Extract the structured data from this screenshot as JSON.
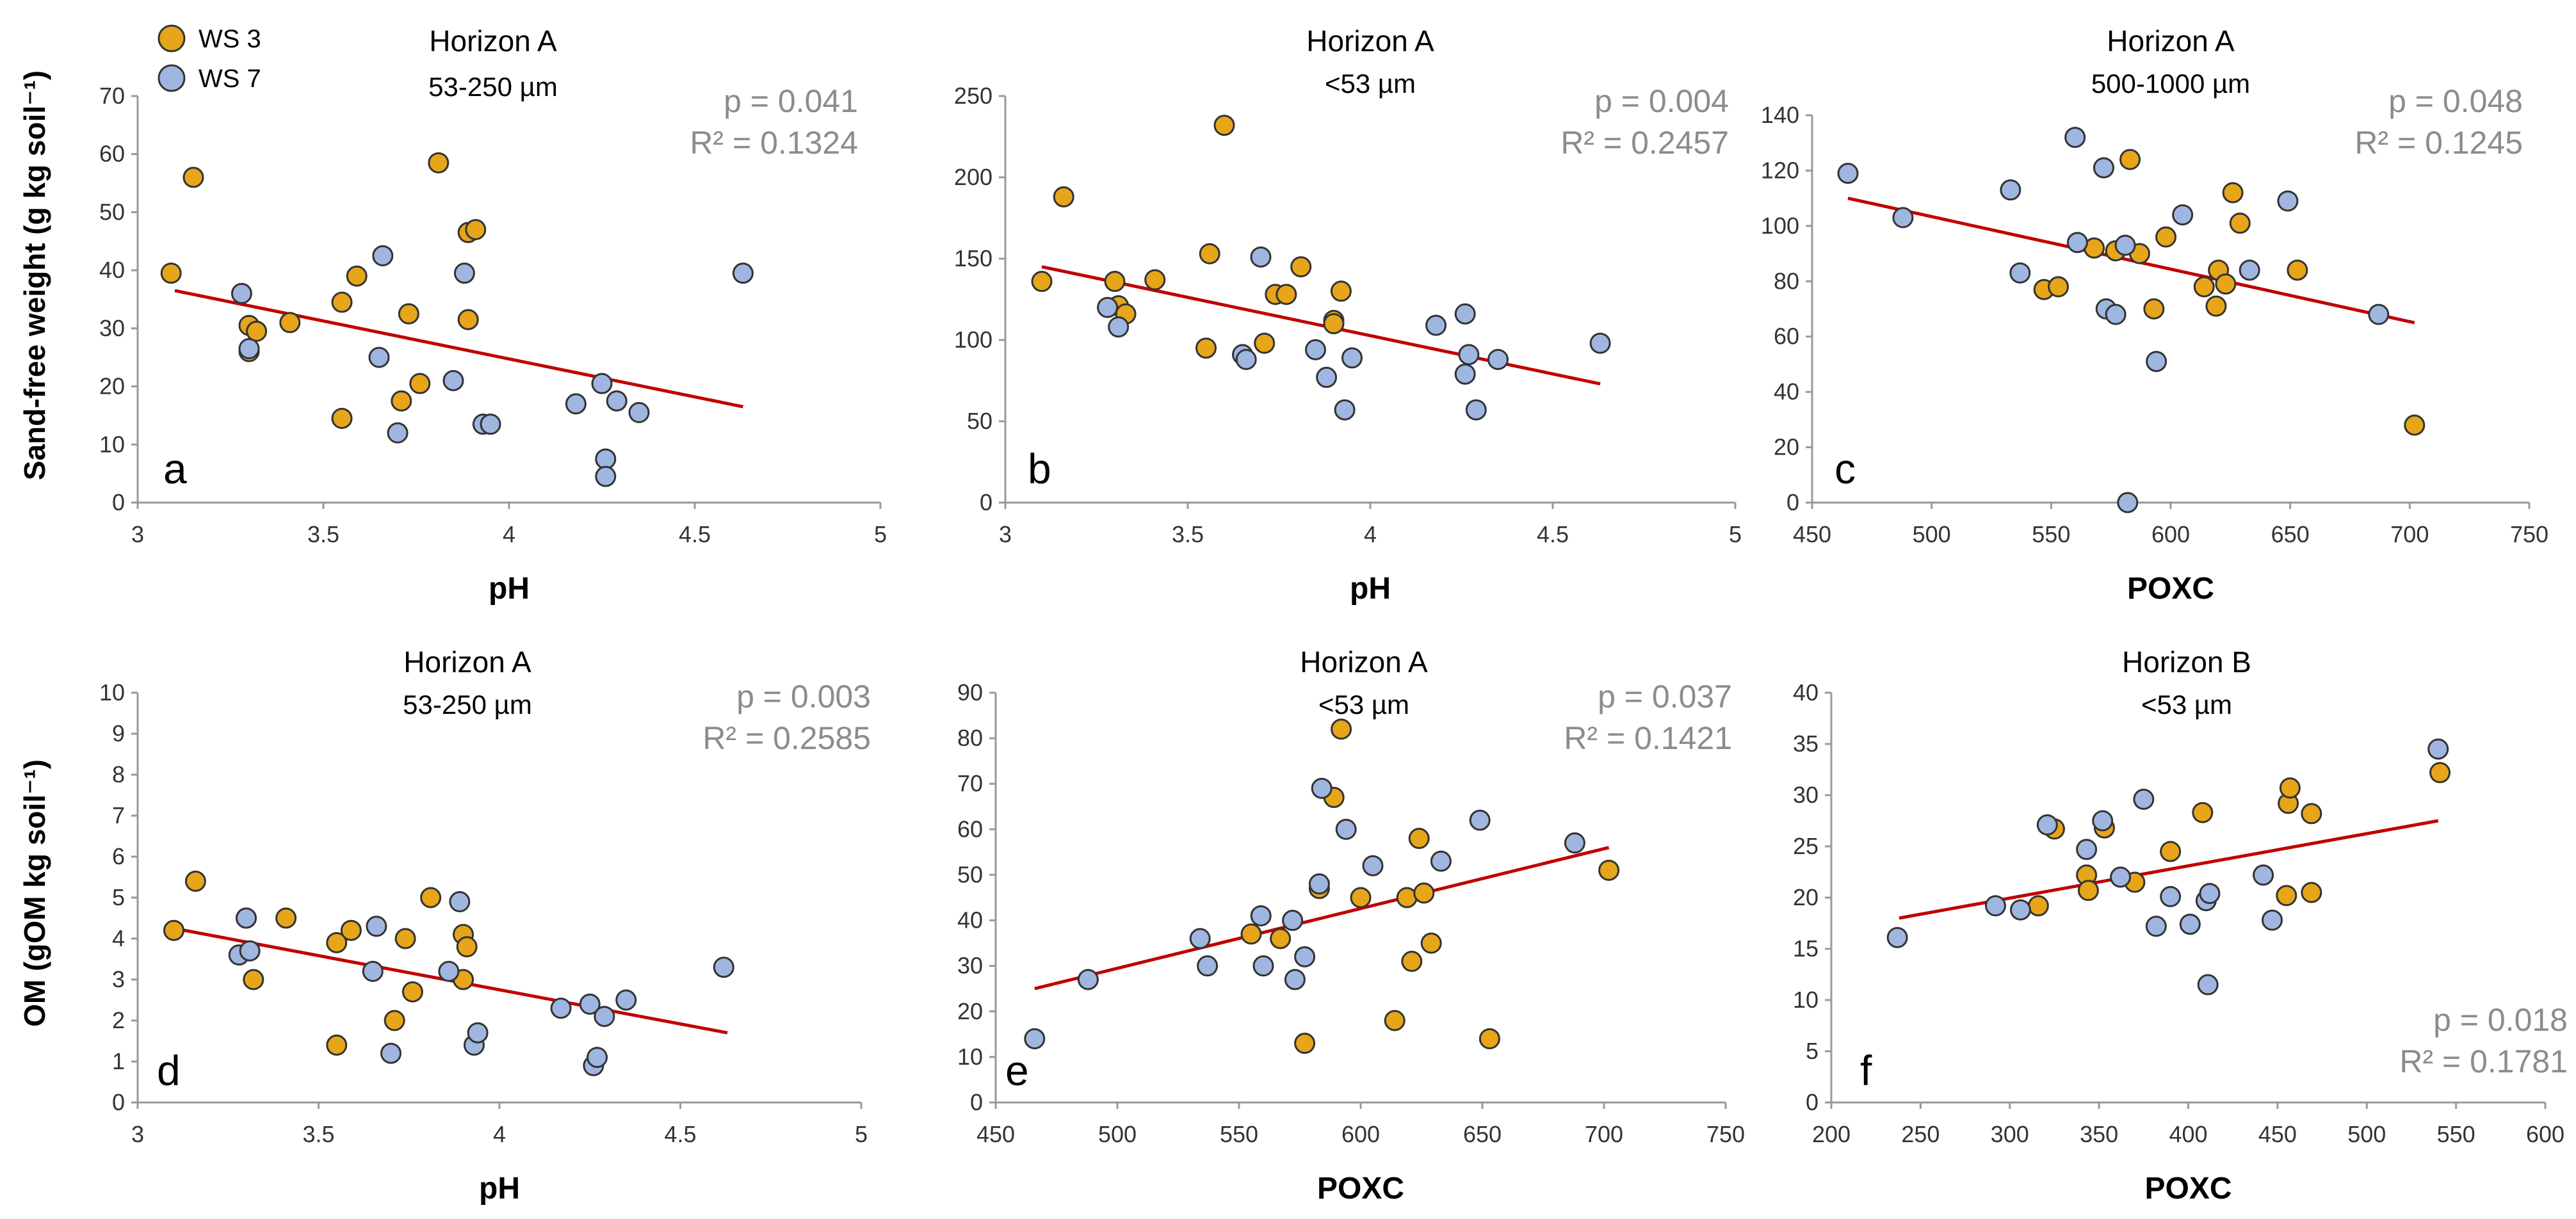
{
  "colors": {
    "ws3": "#E7A519",
    "ws7": "#9FB6E0",
    "trend": "#C00000",
    "axis": "#999999",
    "stat": "#8c8c8c"
  },
  "legend": {
    "ws3": "WS 3",
    "ws7": "WS 7"
  },
  "ylabels": {
    "top": "Sand-free weight (g kg soil⁻¹)",
    "bottom": "OM (gOM kg soil⁻¹)"
  },
  "chart_data": [
    {
      "id": "a",
      "letter": "a",
      "type": "scatter",
      "title": "Horizon A",
      "subtitle": "53-250 µm",
      "xlabel": "pH",
      "xlim": [
        3,
        5
      ],
      "xticks": [
        "3",
        "3.5",
        "4",
        "4.5",
        "5"
      ],
      "ylim": [
        0,
        70
      ],
      "yticks": [
        "0",
        "10",
        "20",
        "30",
        "40",
        "50",
        "60",
        "70"
      ],
      "p": "p = 0.041",
      "r2": "R² = 0.1324",
      "trend": [
        [
          3.1,
          36.5
        ],
        [
          4.63,
          16.5
        ]
      ],
      "series": [
        {
          "name": "WS 3",
          "points": [
            [
              3.09,
              39.5
            ],
            [
              3.15,
              56
            ],
            [
              3.3,
              30.5
            ],
            [
              3.3,
              26
            ],
            [
              3.32,
              29.5
            ],
            [
              3.41,
              31
            ],
            [
              3.55,
              14.5
            ],
            [
              3.55,
              34.5
            ],
            [
              3.59,
              39
            ],
            [
              3.71,
              17.5
            ],
            [
              3.73,
              32.5
            ],
            [
              3.76,
              20.5
            ],
            [
              3.81,
              58.5
            ],
            [
              3.89,
              31.5
            ],
            [
              3.89,
              46.5
            ],
            [
              3.91,
              47
            ]
          ]
        },
        {
          "name": "WS 7",
          "points": [
            [
              3.28,
              36
            ],
            [
              3.3,
              26.5
            ],
            [
              3.65,
              25
            ],
            [
              3.66,
              42.5
            ],
            [
              3.7,
              12
            ],
            [
              3.85,
              21
            ],
            [
              3.88,
              39.5
            ],
            [
              3.93,
              13.5
            ],
            [
              3.95,
              13.5
            ],
            [
              4.18,
              17
            ],
            [
              4.25,
              20.5
            ],
            [
              4.26,
              7.5
            ],
            [
              4.26,
              4.5
            ],
            [
              4.29,
              17.5
            ],
            [
              4.35,
              15.5
            ],
            [
              4.63,
              39.5
            ]
          ]
        }
      ]
    },
    {
      "id": "b",
      "letter": "b",
      "type": "scatter",
      "title": "Horizon A",
      "subtitle": "<53 µm",
      "xlabel": "pH",
      "xlim": [
        3,
        5
      ],
      "xticks": [
        "3",
        "3.5",
        "4",
        "4.5",
        "5"
      ],
      "ylim": [
        0,
        250
      ],
      "yticks": [
        "0",
        "50",
        "100",
        "150",
        "200",
        "250"
      ],
      "p": "p = 0.004",
      "r2": "R² = 0.2457",
      "trend": [
        [
          3.1,
          145
        ],
        [
          4.63,
          73
        ]
      ],
      "series": [
        {
          "name": "WS 3",
          "points": [
            [
              3.1,
              136
            ],
            [
              3.16,
              188
            ],
            [
              3.3,
              136
            ],
            [
              3.31,
              121
            ],
            [
              3.33,
              116
            ],
            [
              3.41,
              137
            ],
            [
              3.55,
              95
            ],
            [
              3.56,
              153
            ],
            [
              3.6,
              232
            ],
            [
              3.71,
              98
            ],
            [
              3.74,
              128
            ],
            [
              3.77,
              128
            ],
            [
              3.81,
              145
            ],
            [
              3.9,
              112
            ],
            [
              3.9,
              110
            ],
            [
              3.92,
              130
            ]
          ]
        },
        {
          "name": "WS 7",
          "points": [
            [
              3.28,
              120
            ],
            [
              3.31,
              108
            ],
            [
              3.65,
              91
            ],
            [
              3.66,
              88
            ],
            [
              3.7,
              151
            ],
            [
              3.85,
              94
            ],
            [
              3.88,
              77
            ],
            [
              3.93,
              57
            ],
            [
              3.95,
              89
            ],
            [
              4.18,
              109
            ],
            [
              4.26,
              116
            ],
            [
              4.26,
              79
            ],
            [
              4.27,
              91
            ],
            [
              4.29,
              57
            ],
            [
              4.35,
              88
            ],
            [
              4.63,
              98
            ]
          ]
        }
      ]
    },
    {
      "id": "c",
      "letter": "c",
      "type": "scatter",
      "title": "Horizon A",
      "subtitle": "500-1000 µm",
      "xlabel": "POXC",
      "xlim": [
        450,
        750
      ],
      "xticks": [
        "450",
        "500",
        "550",
        "600",
        "650",
        "700",
        "750"
      ],
      "ylim": [
        0,
        140
      ],
      "yticks": [
        "0",
        "20",
        "40",
        "60",
        "80",
        "100",
        "120",
        "140"
      ],
      "p": "p = 0.048",
      "r2": "R² = 0.1245",
      "trend": [
        [
          465,
          110
        ],
        [
          702,
          65
        ]
      ],
      "series": [
        {
          "name": "WS 3",
          "points": [
            [
              547,
              77
            ],
            [
              553,
              78
            ],
            [
              568,
              92
            ],
            [
              577,
              91
            ],
            [
              583,
              124
            ],
            [
              587,
              90
            ],
            [
              593,
              70
            ],
            [
              598,
              96
            ],
            [
              614,
              78
            ],
            [
              619,
              71
            ],
            [
              620,
              84
            ],
            [
              623,
              79
            ],
            [
              626,
              112
            ],
            [
              629,
              101
            ],
            [
              653,
              84
            ],
            [
              702,
              28
            ]
          ]
        },
        {
          "name": "WS 7",
          "points": [
            [
              465,
              119
            ],
            [
              488,
              103
            ],
            [
              533,
              113
            ],
            [
              537,
              83
            ],
            [
              560,
              132
            ],
            [
              561,
              94
            ],
            [
              572,
              121
            ],
            [
              573,
              70
            ],
            [
              577,
              68
            ],
            [
              581,
              93
            ],
            [
              582,
              0
            ],
            [
              594,
              51
            ],
            [
              605,
              104
            ],
            [
              633,
              84
            ],
            [
              649,
              109
            ],
            [
              687,
              68
            ]
          ]
        }
      ]
    },
    {
      "id": "d",
      "letter": "d",
      "type": "scatter",
      "title": "Horizon A",
      "subtitle": "53-250 µm",
      "xlabel": "pH",
      "xlim": [
        3,
        5
      ],
      "xticks": [
        "3",
        "3.5",
        "4",
        "4.5",
        "5"
      ],
      "ylim": [
        0,
        10
      ],
      "yticks": [
        "0",
        "1",
        "2",
        "3",
        "4",
        "5",
        "6",
        "7",
        "8",
        "9",
        "10"
      ],
      "p": "p = 0.003",
      "r2": "R² = 0.2585",
      "trend": [
        [
          3.1,
          4.25
        ],
        [
          4.63,
          1.7
        ]
      ],
      "series": [
        {
          "name": "WS 3",
          "points": [
            [
              3.1,
              4.2
            ],
            [
              3.16,
              5.4
            ],
            [
              3.3,
              4.5
            ],
            [
              3.32,
              3.0
            ],
            [
              3.41,
              4.5
            ],
            [
              3.55,
              1.4
            ],
            [
              3.55,
              3.9
            ],
            [
              3.59,
              4.2
            ],
            [
              3.71,
              2.0
            ],
            [
              3.74,
              4.0
            ],
            [
              3.76,
              2.7
            ],
            [
              3.81,
              5.0
            ],
            [
              3.9,
              4.1
            ],
            [
              3.9,
              3.0
            ],
            [
              3.91,
              3.8
            ]
          ]
        },
        {
          "name": "WS 7",
          "points": [
            [
              3.28,
              3.6
            ],
            [
              3.3,
              4.5
            ],
            [
              3.31,
              3.7
            ],
            [
              3.65,
              3.2
            ],
            [
              3.66,
              4.3
            ],
            [
              3.7,
              1.2
            ],
            [
              3.86,
              3.2
            ],
            [
              3.89,
              4.9
            ],
            [
              3.93,
              1.4
            ],
            [
              3.94,
              1.7
            ],
            [
              4.17,
              2.3
            ],
            [
              4.25,
              2.4
            ],
            [
              4.26,
              0.9
            ],
            [
              4.27,
              1.1
            ],
            [
              4.29,
              2.1
            ],
            [
              4.35,
              2.5
            ],
            [
              4.62,
              3.3
            ]
          ]
        }
      ]
    },
    {
      "id": "e",
      "letter": "e",
      "type": "scatter",
      "title": "Horizon A",
      "subtitle": "<53 µm",
      "xlabel": "POXC",
      "xlim": [
        450,
        750
      ],
      "xticks": [
        "450",
        "500",
        "550",
        "600",
        "650",
        "700",
        "750"
      ],
      "ylim": [
        0,
        90
      ],
      "yticks": [
        "0",
        "10",
        "20",
        "30",
        "40",
        "50",
        "60",
        "70",
        "80",
        "90"
      ],
      "p": "p = 0.037",
      "r2": "R² = 0.1421",
      "trend": [
        [
          466,
          25
        ],
        [
          702,
          56
        ]
      ],
      "series": [
        {
          "name": "WS 3",
          "points": [
            [
              555,
              37
            ],
            [
              567,
              36
            ],
            [
              577,
              13
            ],
            [
              583,
              47
            ],
            [
              589,
              67
            ],
            [
              592,
              82
            ],
            [
              600,
              45
            ],
            [
              614,
              18
            ],
            [
              619,
              45
            ],
            [
              621,
              31
            ],
            [
              624,
              58
            ],
            [
              626,
              46
            ],
            [
              629,
              35
            ],
            [
              653,
              14
            ],
            [
              702,
              51
            ]
          ]
        },
        {
          "name": "WS 7",
          "points": [
            [
              466,
              14
            ],
            [
              488,
              27
            ],
            [
              534,
              36
            ],
            [
              537,
              30
            ],
            [
              559,
              41
            ],
            [
              560,
              30
            ],
            [
              572,
              40
            ],
            [
              573,
              27
            ],
            [
              577,
              32
            ],
            [
              583,
              48
            ],
            [
              584,
              69
            ],
            [
              594,
              60
            ],
            [
              605,
              52
            ],
            [
              633,
              53
            ],
            [
              649,
              62
            ],
            [
              688,
              57
            ]
          ]
        }
      ]
    },
    {
      "id": "f",
      "letter": "f",
      "type": "scatter",
      "title": "Horizon B",
      "subtitle": "<53 µm",
      "xlabel": "POXC",
      "xlim": [
        200,
        600
      ],
      "xticks": [
        "200",
        "250",
        "300",
        "350",
        "400",
        "450",
        "500",
        "550",
        "600"
      ],
      "ylim": [
        0,
        40
      ],
      "yticks": [
        "0",
        "5",
        "10",
        "15",
        "20",
        "25",
        "30",
        "35",
        "40"
      ],
      "p": "p = 0.018",
      "r2": "R² = 0.1781",
      "trend": [
        [
          238,
          18
        ],
        [
          540,
          27.5
        ]
      ],
      "series": [
        {
          "name": "WS 3",
          "points": [
            [
              316,
              19.2
            ],
            [
              325,
              26.7
            ],
            [
              343,
              22.2
            ],
            [
              344,
              20.7
            ],
            [
              353,
              26.8
            ],
            [
              370,
              21.5
            ],
            [
              390,
              24.5
            ],
            [
              408,
              28.3
            ],
            [
              455,
              20.2
            ],
            [
              456,
              29.2
            ],
            [
              457,
              30.7
            ],
            [
              469,
              28.2
            ],
            [
              469,
              20.5
            ],
            [
              541,
              32.2
            ]
          ]
        },
        {
          "name": "WS 7",
          "points": [
            [
              237,
              16.1
            ],
            [
              292,
              19.2
            ],
            [
              306,
              18.8
            ],
            [
              321,
              27.1
            ],
            [
              343,
              24.7
            ],
            [
              352,
              27.5
            ],
            [
              362,
              22.0
            ],
            [
              375,
              29.6
            ],
            [
              382,
              17.2
            ],
            [
              390,
              20.1
            ],
            [
              401,
              17.4
            ],
            [
              410,
              19.7
            ],
            [
              412,
              20.4
            ],
            [
              411,
              11.5
            ],
            [
              442,
              22.2
            ],
            [
              447,
              17.8
            ],
            [
              540,
              34.5
            ]
          ]
        }
      ]
    }
  ]
}
